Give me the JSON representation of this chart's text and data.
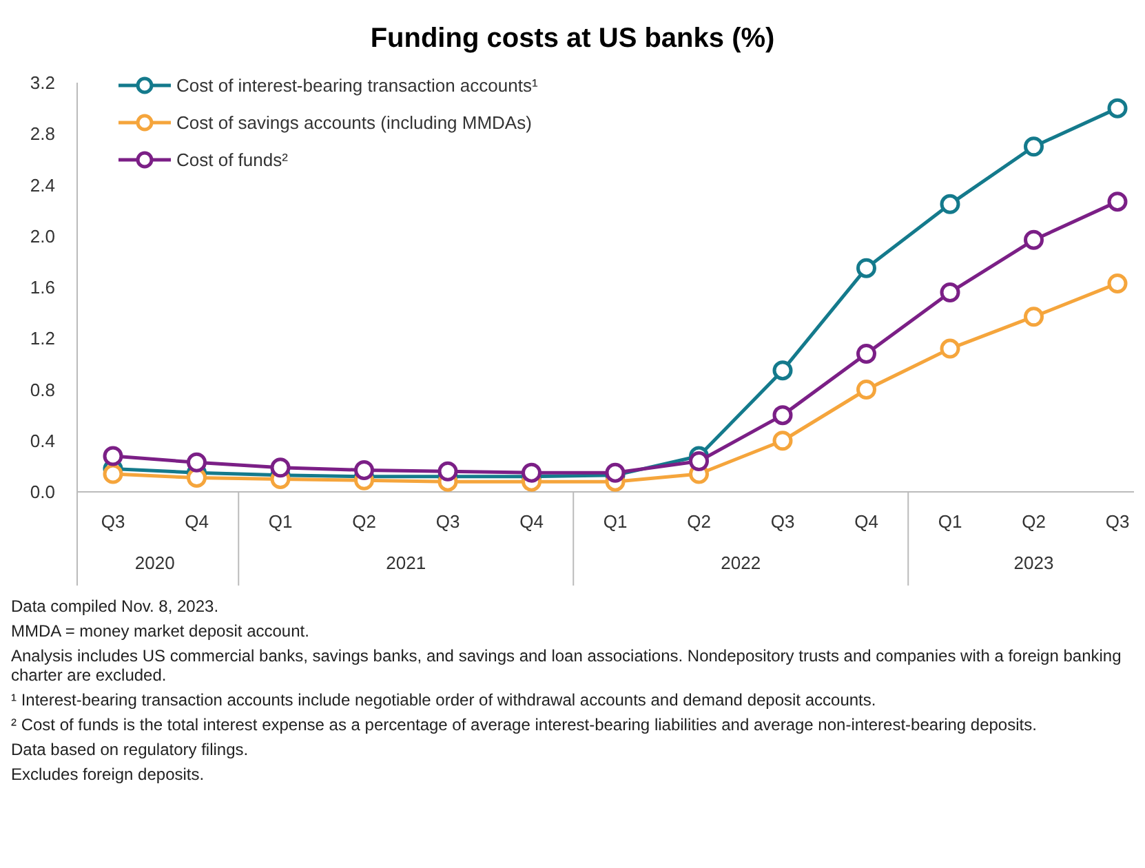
{
  "chart_data": {
    "type": "line",
    "title": "Funding costs at US banks (%)",
    "categories": [
      "Q3",
      "Q4",
      "Q1",
      "Q2",
      "Q3",
      "Q4",
      "Q1",
      "Q2",
      "Q3",
      "Q4",
      "Q1",
      "Q2",
      "Q3"
    ],
    "series": [
      {
        "name": "Cost of interest-bearing transaction accounts¹",
        "color": "#147a8c",
        "values": [
          0.18,
          0.15,
          0.13,
          0.12,
          0.12,
          0.12,
          0.13,
          0.28,
          0.95,
          1.75,
          2.25,
          2.7,
          3.0
        ]
      },
      {
        "name": "Cost of savings accounts (including MMDAs)",
        "color": "#f5a53c",
        "values": [
          0.14,
          0.11,
          0.1,
          0.09,
          0.08,
          0.08,
          0.08,
          0.14,
          0.4,
          0.8,
          1.12,
          1.37,
          1.63
        ]
      },
      {
        "name": "Cost of funds²",
        "color": "#7b1f86",
        "values": [
          0.28,
          0.23,
          0.19,
          0.17,
          0.16,
          0.15,
          0.15,
          0.24,
          0.6,
          1.08,
          1.56,
          1.97,
          2.27
        ]
      }
    ],
    "ylim": [
      0,
      3.2
    ],
    "yticks": [
      {
        "value": 0,
        "label": "0.0"
      },
      0.4,
      0.8,
      1.2,
      1.6,
      {
        "value": 2,
        "label": "2.0"
      },
      2.4,
      2.8,
      3.2
    ],
    "grid": false,
    "legend": "top left",
    "marker": "circle",
    "line_style": "solid",
    "annotations": [
      "2020",
      "2021",
      "2022",
      "2023",
      "Data compiled Nov. 8, 2023.",
      "MMDA = money market deposit account.",
      "Analysis includes US commercial banks, savings banks, and savings and loan associations. Nondepository trusts and companies with a foreign banking charter are excluded.",
      "¹ Interest-bearing transaction accounts include negotiable order of withdrawal accounts and demand deposit accounts.",
      "² Cost of funds is the total interest expense as a percentage of average interest-bearing liabilities and average non-interest-bearing deposits.",
      "Data based on regulatory filings.",
      "Excludes foreign deposits."
    ]
  }
}
